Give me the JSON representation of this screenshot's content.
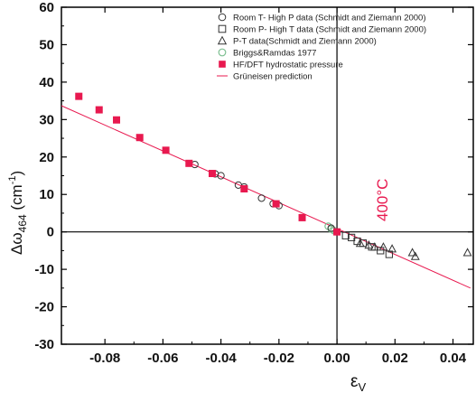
{
  "chart_data": {
    "type": "scatter",
    "xlabel": "ε",
    "xlabel_sub": "V",
    "ylabel_main": "Δω",
    "ylabel_sub": "464",
    "ylabel_unit_pre": " (cm",
    "ylabel_unit_sup": "-1",
    "ylabel_unit_post": ")",
    "xlim": [
      -0.095,
      0.047
    ],
    "ylim": [
      -30,
      60
    ],
    "xticks": [
      -0.08,
      -0.06,
      -0.04,
      -0.02,
      0.0,
      0.02,
      0.04
    ],
    "xtick_labels": [
      "-0.08",
      "-0.06",
      "-0.04",
      "-0.02",
      "0.00",
      "0.02",
      "0.04"
    ],
    "yticks": [
      -30,
      -20,
      -10,
      0,
      10,
      20,
      30,
      40,
      50,
      60
    ],
    "ytick_labels": [
      "-30",
      "-20",
      "-10",
      "0",
      "10",
      "20",
      "30",
      "40",
      "50",
      "60"
    ],
    "annotation": "400°C",
    "legend_position": "top-right",
    "colors": {
      "accent": "#e8194f",
      "marker": "#333333",
      "briggs": "#7dbf91",
      "axis": "#000000"
    },
    "series": [
      {
        "name": "Room T- High P data (Schmidt and Ziemann 2000)",
        "marker": "circle",
        "x": [
          -0.049,
          -0.042,
          -0.04,
          -0.034,
          -0.032,
          -0.026,
          -0.022,
          -0.02,
          -0.002,
          0.0
        ],
        "y": [
          18,
          15.5,
          15,
          12.5,
          12,
          9,
          7.5,
          7,
          1,
          0
        ]
      },
      {
        "name": "Room P- High T data (Schmidt and Ziemann 2000)",
        "marker": "square",
        "x": [
          0.003,
          0.005,
          0.007,
          0.009,
          0.012,
          0.015,
          0.018
        ],
        "y": [
          -1,
          -1.5,
          -2.5,
          -3,
          -4,
          -5,
          -6
        ]
      },
      {
        "name": "P-T data(Schmidt and Ziemann 2000)",
        "marker": "triangle",
        "x": [
          0.008,
          0.011,
          0.013,
          0.016,
          0.019,
          0.026,
          0.027,
          0.045
        ],
        "y": [
          -3,
          -3.5,
          -4,
          -4,
          -4.5,
          -5.5,
          -6.5,
          -5.5
        ]
      },
      {
        "name": "Briggs&Ramdas 1977",
        "marker": "circle-light",
        "x": [
          -0.003,
          -0.002,
          -0.001
        ],
        "y": [
          1.5,
          0.8,
          0.3
        ]
      },
      {
        "name": "HF/DFT hydrostatic pressure",
        "marker": "filled-square",
        "x": [
          -0.089,
          -0.082,
          -0.076,
          -0.068,
          -0.059,
          -0.051,
          -0.043,
          -0.032,
          -0.021,
          -0.012,
          0.0
        ],
        "y": [
          36.2,
          32.6,
          29.9,
          25.2,
          21.8,
          18.3,
          15.6,
          11.5,
          7.5,
          3.8,
          0
        ]
      },
      {
        "name": "Grüneisen prediction",
        "marker": "line",
        "x": [
          -0.095,
          0.046
        ],
        "y": [
          33.7,
          -15
        ]
      }
    ]
  }
}
